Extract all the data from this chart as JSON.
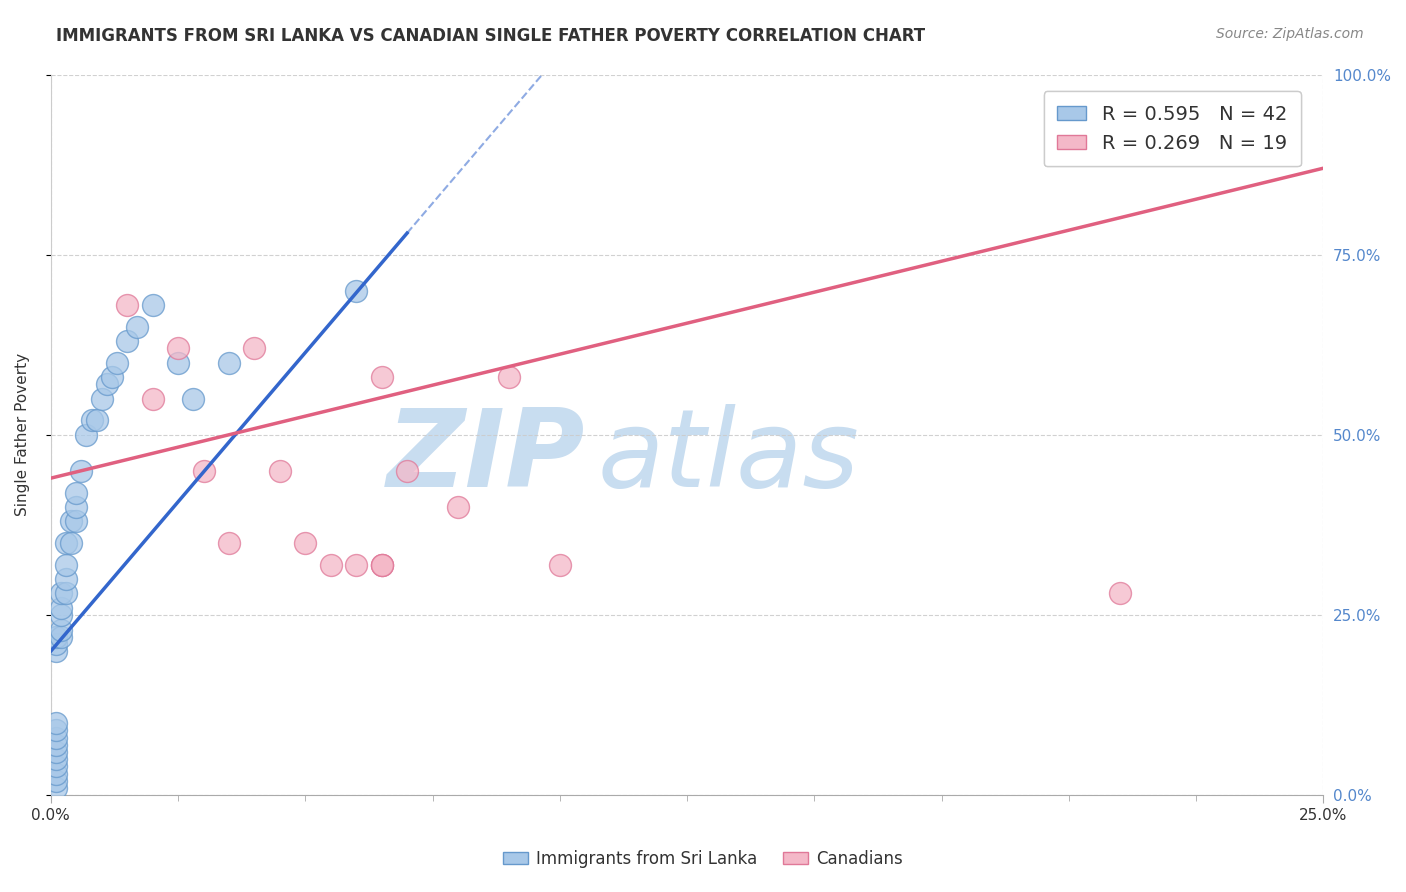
{
  "title": "IMMIGRANTS FROM SRI LANKA VS CANADIAN SINGLE FATHER POVERTY CORRELATION CHART",
  "source": "Source: ZipAtlas.com",
  "ylabel": "Single Father Poverty",
  "xlim": [
    0.0,
    0.25
  ],
  "ylim": [
    0.0,
    1.0
  ],
  "blue_R": 0.595,
  "blue_N": 42,
  "pink_R": 0.269,
  "pink_N": 19,
  "blue_color": "#a8c8e8",
  "blue_edge_color": "#6699cc",
  "pink_color": "#f4b8c8",
  "pink_edge_color": "#e07898",
  "blue_line_color": "#3366cc",
  "pink_line_color": "#e06080",
  "watermark_zip": "ZIP",
  "watermark_atlas": "atlas",
  "watermark_color": "#c8ddf0",
  "legend_label_blue": "Immigrants from Sri Lanka",
  "legend_label_pink": "Canadians",
  "right_tick_color": "#5588cc",
  "blue_x": [
    0.001,
    0.001,
    0.001,
    0.001,
    0.001,
    0.001,
    0.001,
    0.001,
    0.001,
    0.001,
    0.001,
    0.001,
    0.001,
    0.002,
    0.002,
    0.002,
    0.002,
    0.002,
    0.003,
    0.003,
    0.003,
    0.003,
    0.004,
    0.004,
    0.005,
    0.005,
    0.005,
    0.006,
    0.007,
    0.008,
    0.009,
    0.01,
    0.011,
    0.012,
    0.013,
    0.015,
    0.017,
    0.02,
    0.025,
    0.028,
    0.035,
    0.06
  ],
  "blue_y": [
    0.01,
    0.02,
    0.03,
    0.04,
    0.05,
    0.06,
    0.07,
    0.08,
    0.09,
    0.1,
    0.2,
    0.21,
    0.22,
    0.22,
    0.23,
    0.25,
    0.26,
    0.28,
    0.28,
    0.3,
    0.32,
    0.35,
    0.35,
    0.38,
    0.38,
    0.4,
    0.42,
    0.45,
    0.5,
    0.52,
    0.52,
    0.55,
    0.57,
    0.58,
    0.6,
    0.63,
    0.65,
    0.68,
    0.6,
    0.55,
    0.6,
    0.7
  ],
  "pink_x": [
    0.015,
    0.02,
    0.025,
    0.03,
    0.035,
    0.04,
    0.045,
    0.05,
    0.055,
    0.06,
    0.065,
    0.065,
    0.065,
    0.065,
    0.07,
    0.08,
    0.09,
    0.1,
    0.21
  ],
  "pink_y": [
    0.68,
    0.55,
    0.62,
    0.45,
    0.35,
    0.62,
    0.45,
    0.35,
    0.32,
    0.32,
    0.32,
    0.32,
    0.32,
    0.58,
    0.45,
    0.4,
    0.58,
    0.32,
    0.28
  ],
  "blue_line_x0": 0.0,
  "blue_line_y0": 0.2,
  "blue_line_x1": 0.07,
  "blue_line_y1": 0.78,
  "pink_line_x0": 0.0,
  "pink_line_y0": 0.44,
  "pink_line_x1": 0.25,
  "pink_line_y1": 0.87
}
